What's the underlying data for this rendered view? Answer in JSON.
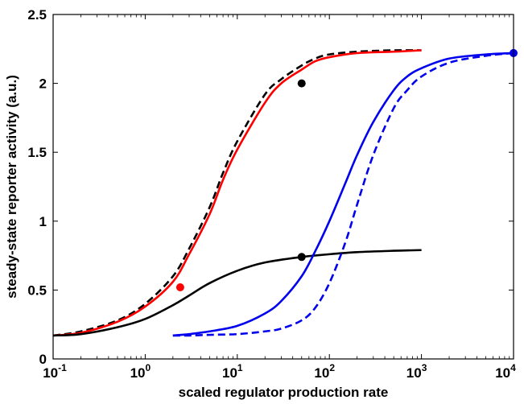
{
  "chart_data": {
    "type": "line",
    "xscale": "log",
    "xlim": [
      0.1,
      10000
    ],
    "ylim": [
      0,
      2.5
    ],
    "xlabel": "scaled regulator production rate",
    "ylabel": "steady-state reporter activity (a.u.)",
    "x_ticks": [
      {
        "value": 0.1,
        "base": "10",
        "exp": "-1"
      },
      {
        "value": 1,
        "base": "10",
        "exp": "0"
      },
      {
        "value": 10,
        "base": "10",
        "exp": "1"
      },
      {
        "value": 100,
        "base": "10",
        "exp": "2"
      },
      {
        "value": 1000,
        "base": "10",
        "exp": "3"
      },
      {
        "value": 10000,
        "base": "10",
        "exp": "4"
      }
    ],
    "y_ticks": [
      {
        "value": 0,
        "label": "0"
      },
      {
        "value": 0.5,
        "label": "0.5"
      },
      {
        "value": 1,
        "label": "1"
      },
      {
        "value": 1.5,
        "label": "1.5"
      },
      {
        "value": 2,
        "label": "2"
      },
      {
        "value": 2.5,
        "label": "2.5"
      }
    ],
    "grid": false,
    "series": [
      {
        "color": "#000000",
        "dash": "dashed",
        "x": [
          0.1,
          0.2,
          0.5,
          1,
          2,
          3,
          5,
          7,
          10,
          20,
          30,
          50,
          70,
          100,
          200,
          500,
          1000
        ],
        "y": [
          0.17,
          0.2,
          0.28,
          0.4,
          0.6,
          0.8,
          1.1,
          1.35,
          1.58,
          1.92,
          2.03,
          2.13,
          2.18,
          2.21,
          2.23,
          2.24,
          2.24
        ]
      },
      {
        "color": "#ff0000",
        "dash": "solid",
        "x": [
          0.1,
          0.2,
          0.5,
          1,
          2,
          3,
          5,
          7,
          10,
          20,
          30,
          50,
          70,
          100,
          200,
          500,
          1000
        ],
        "y": [
          0.17,
          0.19,
          0.27,
          0.38,
          0.56,
          0.76,
          1.05,
          1.3,
          1.52,
          1.86,
          2.0,
          2.1,
          2.16,
          2.19,
          2.22,
          2.23,
          2.24
        ]
      },
      {
        "color": "#000000",
        "dash": "solid",
        "x": [
          0.1,
          0.2,
          0.5,
          1,
          2,
          3,
          5,
          10,
          20,
          50,
          100,
          200,
          500,
          1000
        ],
        "y": [
          0.17,
          0.18,
          0.23,
          0.29,
          0.39,
          0.46,
          0.55,
          0.64,
          0.7,
          0.74,
          0.76,
          0.775,
          0.785,
          0.79
        ]
      },
      {
        "color": "#0000ee",
        "dash": "solid",
        "x": [
          2,
          3,
          5,
          10,
          20,
          30,
          50,
          70,
          100,
          150,
          200,
          300,
          500,
          700,
          1000,
          2000,
          5000,
          10000
        ],
        "y": [
          0.17,
          0.18,
          0.2,
          0.24,
          0.33,
          0.42,
          0.6,
          0.78,
          1.0,
          1.28,
          1.48,
          1.72,
          1.95,
          2.05,
          2.11,
          2.18,
          2.21,
          2.22
        ]
      },
      {
        "color": "#0000ee",
        "dash": "dashed",
        "x": [
          2,
          3,
          5,
          10,
          20,
          30,
          50,
          70,
          100,
          150,
          200,
          300,
          500,
          700,
          1000,
          2000,
          5000,
          10000
        ],
        "y": [
          0.17,
          0.17,
          0.175,
          0.18,
          0.2,
          0.22,
          0.28,
          0.37,
          0.55,
          0.85,
          1.12,
          1.48,
          1.82,
          1.95,
          2.05,
          2.15,
          2.2,
          2.22
        ]
      }
    ],
    "markers": [
      {
        "x": 2.4,
        "y": 0.52,
        "color": "#ff0000"
      },
      {
        "x": 50,
        "y": 2.0,
        "color": "#000000"
      },
      {
        "x": 50,
        "y": 0.74,
        "color": "#000000"
      },
      {
        "x": 10000,
        "y": 2.22,
        "color": "#0000ee"
      }
    ]
  }
}
